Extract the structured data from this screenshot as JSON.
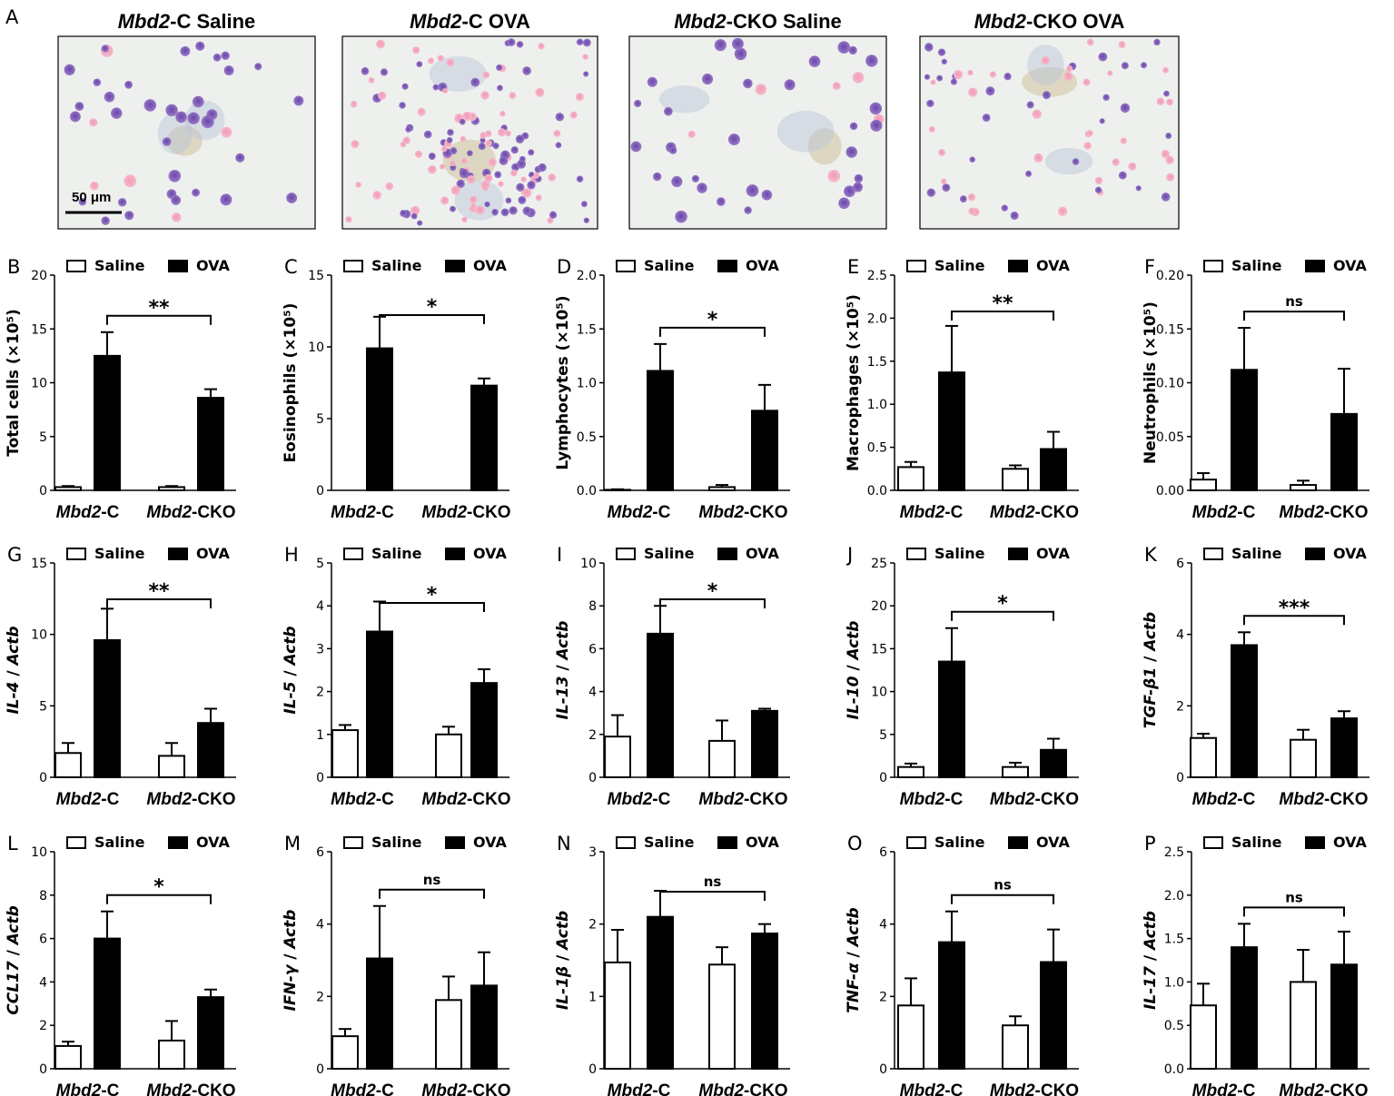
{
  "figure_label": "A",
  "micrographs": {
    "scale_bar_label": "50 μm",
    "panels": [
      {
        "title": "Mbd2-C Saline",
        "title_italic": "Mbd2",
        "title_rest": "-C Saline",
        "stain": "saline"
      },
      {
        "title": "Mbd2-C OVA",
        "title_italic": "Mbd2",
        "title_rest": "-C OVA",
        "stain": "ova"
      },
      {
        "title": "Mbd2-CKO Saline",
        "title_italic": "Mbd2",
        "title_rest": "-CKO Saline",
        "stain": "saline"
      },
      {
        "title": "Mbd2-CKO OVA",
        "title_italic": "Mbd2",
        "title_rest": "-CKO OVA",
        "stain": "ova"
      }
    ]
  },
  "legend": {
    "saline": "Saline",
    "ova": "OVA"
  },
  "categories": [
    "Mbd2-C",
    "Mbd2-CKO"
  ],
  "category_parts": [
    {
      "italic": "Mbd2",
      "rest": "-C"
    },
    {
      "italic": "Mbd2",
      "rest": "-CKO"
    }
  ],
  "colors": {
    "saline_fill": "#ffffff",
    "ova_fill": "#000000",
    "outline": "#000000"
  },
  "chart_data": [
    {
      "panel": "B",
      "type": "bar",
      "ylabel": "Total cells (×10⁵)",
      "ylim": [
        0,
        20
      ],
      "yticks": [
        "0",
        "5",
        "10",
        "15",
        "20"
      ],
      "series": [
        {
          "name": "Saline",
          "values": [
            0.3,
            0.3
          ],
          "errors": [
            0.1,
            0.1
          ]
        },
        {
          "name": "OVA",
          "values": [
            12.5,
            8.6
          ],
          "errors": [
            2.2,
            0.8
          ]
        }
      ],
      "significance": "**"
    },
    {
      "panel": "C",
      "type": "bar",
      "ylabel": "Eosinophils (×10⁵)",
      "ylim": [
        0,
        15
      ],
      "yticks": [
        "0",
        "5",
        "10",
        "15"
      ],
      "series": [
        {
          "name": "Saline",
          "values": [
            0,
            0
          ],
          "errors": [
            0,
            0
          ]
        },
        {
          "name": "OVA",
          "values": [
            9.9,
            7.3
          ],
          "errors": [
            2.2,
            0.5
          ]
        }
      ],
      "significance": "*"
    },
    {
      "panel": "D",
      "type": "bar",
      "ylabel": "Lymphocytes (×10⁵)",
      "ylim": [
        0,
        2.0
      ],
      "yticks": [
        "0.0",
        "0.5",
        "1.0",
        "1.5",
        "2.0"
      ],
      "series": [
        {
          "name": "Saline",
          "values": [
            0.005,
            0.03
          ],
          "errors": [
            0.005,
            0.02
          ]
        },
        {
          "name": "OVA",
          "values": [
            1.11,
            0.74
          ],
          "errors": [
            0.25,
            0.24
          ]
        }
      ],
      "significance": "*"
    },
    {
      "panel": "E",
      "type": "bar",
      "ylabel": "Macrophages (×10⁵)",
      "ylim": [
        0,
        2.5
      ],
      "yticks": [
        "0.0",
        "0.5",
        "1.0",
        "1.5",
        "2.0",
        "2.5"
      ],
      "series": [
        {
          "name": "Saline",
          "values": [
            0.27,
            0.25
          ],
          "errors": [
            0.06,
            0.04
          ]
        },
        {
          "name": "OVA",
          "values": [
            1.37,
            0.48
          ],
          "errors": [
            0.54,
            0.2
          ]
        }
      ],
      "significance": "**"
    },
    {
      "panel": "F",
      "type": "bar",
      "ylabel": "Neutrophils (×10⁵)",
      "ylim": [
        0,
        0.2
      ],
      "yticks": [
        "0.00",
        "0.05",
        "0.10",
        "0.15",
        "0.20"
      ],
      "series": [
        {
          "name": "Saline",
          "values": [
            0.01,
            0.005
          ],
          "errors": [
            0.006,
            0.004
          ]
        },
        {
          "name": "OVA",
          "values": [
            0.112,
            0.071
          ],
          "errors": [
            0.039,
            0.042
          ]
        }
      ],
      "significance": "ns"
    },
    {
      "panel": "G",
      "type": "bar",
      "ylabel_italic": "IL-4",
      "ylabel_rest": " / ",
      "ylabel_italic2": "Actb",
      "ylim": [
        0,
        15
      ],
      "yticks": [
        "0",
        "5",
        "10",
        "15"
      ],
      "series": [
        {
          "name": "Saline",
          "values": [
            1.7,
            1.5
          ],
          "errors": [
            0.7,
            0.9
          ]
        },
        {
          "name": "OVA",
          "values": [
            9.6,
            3.8
          ],
          "errors": [
            2.2,
            1.0
          ]
        }
      ],
      "significance": "**"
    },
    {
      "panel": "H",
      "type": "bar",
      "ylabel_italic": "IL-5",
      "ylabel_rest": " / ",
      "ylabel_italic2": "Actb",
      "ylim": [
        0,
        5
      ],
      "yticks": [
        "0",
        "1",
        "2",
        "3",
        "4",
        "5"
      ],
      "series": [
        {
          "name": "Saline",
          "values": [
            1.1,
            1.0
          ],
          "errors": [
            0.12,
            0.18
          ]
        },
        {
          "name": "OVA",
          "values": [
            3.4,
            2.2
          ],
          "errors": [
            0.7,
            0.32
          ]
        }
      ],
      "significance": "*"
    },
    {
      "panel": "I",
      "type": "bar",
      "ylabel_italic": "IL-13",
      "ylabel_rest": " / ",
      "ylabel_italic2": "Actb",
      "ylim": [
        0,
        10
      ],
      "yticks": [
        "0",
        "2",
        "4",
        "6",
        "8",
        "10"
      ],
      "series": [
        {
          "name": "Saline",
          "values": [
            1.9,
            1.7
          ],
          "errors": [
            1.0,
            0.95
          ]
        },
        {
          "name": "OVA",
          "values": [
            6.7,
            3.1
          ],
          "errors": [
            1.3,
            0.1
          ]
        }
      ],
      "significance": "*"
    },
    {
      "panel": "J",
      "type": "bar",
      "ylabel_italic": "IL-10",
      "ylabel_rest": " / ",
      "ylabel_italic2": "Actb",
      "ylim": [
        0,
        25
      ],
      "yticks": [
        "0",
        "5",
        "10",
        "15",
        "20",
        "25"
      ],
      "series": [
        {
          "name": "Saline",
          "values": [
            1.2,
            1.2
          ],
          "errors": [
            0.4,
            0.5
          ]
        },
        {
          "name": "OVA",
          "values": [
            13.5,
            3.2
          ],
          "errors": [
            3.9,
            1.3
          ]
        }
      ],
      "significance": "*"
    },
    {
      "panel": "K",
      "type": "bar",
      "ylabel_italic": "TGF-β1",
      "ylabel_rest": " / ",
      "ylabel_italic2": "Actb",
      "ylim": [
        0,
        6
      ],
      "yticks": [
        "0",
        "2",
        "4",
        "6"
      ],
      "series": [
        {
          "name": "Saline",
          "values": [
            1.1,
            1.05
          ],
          "errors": [
            0.12,
            0.28
          ]
        },
        {
          "name": "OVA",
          "values": [
            3.7,
            1.65
          ],
          "errors": [
            0.36,
            0.2
          ]
        }
      ],
      "significance": "***"
    },
    {
      "panel": "L",
      "type": "bar",
      "ylabel_italic": "CCL17",
      "ylabel_rest": " / ",
      "ylabel_italic2": "Actb",
      "ylim": [
        0,
        10
      ],
      "yticks": [
        "0",
        "2",
        "4",
        "6",
        "8",
        "10"
      ],
      "series": [
        {
          "name": "Saline",
          "values": [
            1.05,
            1.3
          ],
          "errors": [
            0.2,
            0.9
          ]
        },
        {
          "name": "OVA",
          "values": [
            6.0,
            3.3
          ],
          "errors": [
            1.25,
            0.35
          ]
        }
      ],
      "significance": "*"
    },
    {
      "panel": "M",
      "type": "bar",
      "ylabel_italic": "IFN-γ",
      "ylabel_rest": " / ",
      "ylabel_italic2": "Actb",
      "ylim": [
        0,
        6
      ],
      "yticks": [
        "0",
        "2",
        "4",
        "6"
      ],
      "series": [
        {
          "name": "Saline",
          "values": [
            0.9,
            1.9
          ],
          "errors": [
            0.2,
            0.65
          ]
        },
        {
          "name": "OVA",
          "values": [
            3.05,
            2.3
          ],
          "errors": [
            1.45,
            0.92
          ]
        }
      ],
      "significance": "ns"
    },
    {
      "panel": "N",
      "type": "bar",
      "ylabel_italic": "IL-1β",
      "ylabel_rest": " / ",
      "ylabel_italic2": "Actb",
      "ylim": [
        0,
        3
      ],
      "yticks": [
        "0",
        "1",
        "2",
        "3"
      ],
      "series": [
        {
          "name": "Saline",
          "values": [
            1.47,
            1.44
          ],
          "errors": [
            0.45,
            0.24
          ]
        },
        {
          "name": "OVA",
          "values": [
            2.1,
            1.87
          ],
          "errors": [
            0.36,
            0.13
          ]
        }
      ],
      "significance": "ns"
    },
    {
      "panel": "O",
      "type": "bar",
      "ylabel_italic": "TNF-α",
      "ylabel_rest": " / ",
      "ylabel_italic2": "Actb",
      "ylim": [
        0,
        6
      ],
      "yticks": [
        "0",
        "2",
        "4",
        "6"
      ],
      "series": [
        {
          "name": "Saline",
          "values": [
            1.75,
            1.2
          ],
          "errors": [
            0.75,
            0.25
          ]
        },
        {
          "name": "OVA",
          "values": [
            3.5,
            2.95
          ],
          "errors": [
            0.85,
            0.9
          ]
        }
      ],
      "significance": "ns"
    },
    {
      "panel": "P",
      "type": "bar",
      "ylabel_italic": "IL-17",
      "ylabel_rest": " / ",
      "ylabel_italic2": "Actb",
      "ylim": [
        0,
        2.5
      ],
      "yticks": [
        "0.0",
        "0.5",
        "1.0",
        "1.5",
        "2.0",
        "2.5"
      ],
      "series": [
        {
          "name": "Saline",
          "values": [
            0.73,
            1.0
          ],
          "errors": [
            0.25,
            0.37
          ]
        },
        {
          "name": "OVA",
          "values": [
            1.4,
            1.2
          ],
          "errors": [
            0.27,
            0.38
          ]
        }
      ],
      "significance": "ns"
    }
  ]
}
